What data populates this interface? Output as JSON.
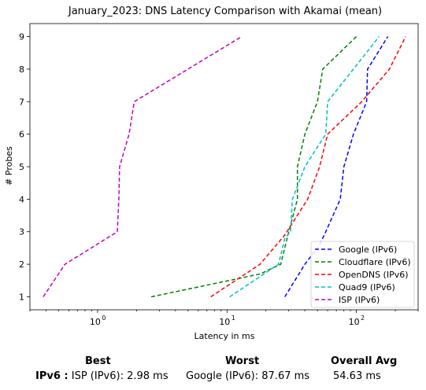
{
  "chart_data": {
    "type": "line",
    "title": "January_2023: DNS Latency Comparison with Akamai (mean)",
    "xlabel": "Latency in ms",
    "ylabel": "# Probes",
    "x_scale": "log",
    "xlim": [
      0.3,
      300
    ],
    "ylim": [
      0.6,
      9.4
    ],
    "x_ticks": [
      {
        "value": 1,
        "label": "10"
      },
      {
        "value": 10,
        "label": "10"
      },
      {
        "value": 100,
        "label": "10"
      }
    ],
    "x_tick_exponents": [
      "0",
      "1",
      "2"
    ],
    "y_ticks": [
      1,
      2,
      3,
      4,
      5,
      6,
      7,
      8,
      9
    ],
    "y_tick_labels": [
      "1",
      "2",
      "3",
      "4",
      "5",
      "6",
      "7",
      "8",
      "9"
    ],
    "grid": false,
    "legend_position": "lower-right",
    "series": [
      {
        "name": "Google (IPv6)",
        "color": "#0000ff",
        "x": [
          28,
          40,
          52,
          58,
          75,
          80,
          95,
          120,
          122,
          175
        ],
        "y": [
          1,
          2,
          2.6,
          3,
          4,
          5,
          6,
          7,
          8,
          9
        ]
      },
      {
        "name": "Cloudflare (IPv6)",
        "color": "#008000",
        "x": [
          2.6,
          18,
          26,
          30,
          35,
          35,
          40,
          50,
          55,
          100
        ],
        "y": [
          1,
          1.7,
          2,
          3,
          4,
          5,
          6,
          7,
          8,
          9
        ]
      },
      {
        "name": "OpenDNS (IPv6)",
        "color": "#ff0000",
        "x": [
          7.5,
          18,
          28,
          42,
          52,
          60,
          110,
          180,
          240
        ],
        "y": [
          1,
          2,
          2.9,
          4,
          5,
          6,
          7,
          8,
          9
        ]
      },
      {
        "name": "Quad9 (IPv6)",
        "color": "#00bfbf",
        "x": [
          10.5,
          25,
          28,
          31,
          32,
          40,
          58,
          60,
          150
        ],
        "y": [
          1,
          2,
          2.8,
          3,
          4,
          5,
          6,
          7,
          9
        ]
      },
      {
        "name": "ISP (IPv6)",
        "color": "#bf00bf",
        "x": [
          0.38,
          0.56,
          1.42,
          1.46,
          1.48,
          1.75,
          1.92,
          13
        ],
        "y": [
          1,
          2,
          3,
          4,
          5,
          6,
          7,
          9
        ]
      }
    ]
  },
  "summary": {
    "headers": {
      "best": "Best",
      "worst": "Worst",
      "overall": "Overall Avg"
    },
    "row_label": "IPv6 :",
    "best": "ISP (IPv6): 2.98 ms",
    "worst": "Google (IPv6): 87.67 ms",
    "overall": "54.63 ms"
  }
}
